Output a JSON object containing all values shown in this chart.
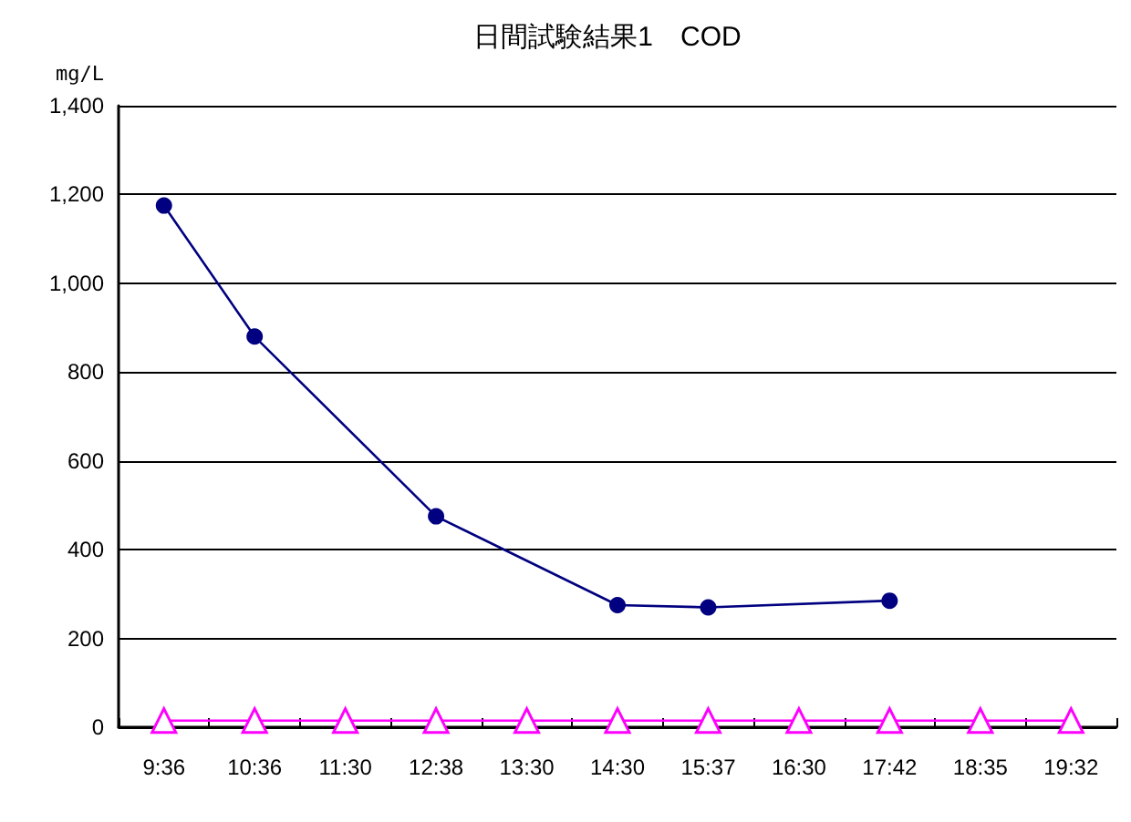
{
  "chart_data": {
    "type": "line",
    "title": "日間試験結果1　COD",
    "ylabel": "mg/L",
    "categories": [
      "9:36",
      "10:36",
      "11:30",
      "12:38",
      "13:30",
      "14:30",
      "15:37",
      "16:30",
      "17:42",
      "18:35",
      "19:32"
    ],
    "series": [
      {
        "color": "#000080",
        "marker": "circle",
        "values": [
          1175,
          880,
          null,
          475,
          null,
          275,
          270,
          null,
          285,
          null,
          null
        ]
      },
      {
        "color": "#ff00ff",
        "marker": "triangle",
        "values": [
          15,
          15,
          15,
          15,
          15,
          15,
          15,
          15,
          15,
          15,
          15
        ]
      }
    ],
    "ylim": [
      0,
      1400
    ],
    "yticks": [
      0,
      200,
      400,
      600,
      800,
      {
        "value": 1000,
        "label": "1,000"
      },
      {
        "value": 1200,
        "label": "1,200"
      },
      {
        "value": 1400,
        "label": "1,400"
      }
    ],
    "grid": "y"
  }
}
